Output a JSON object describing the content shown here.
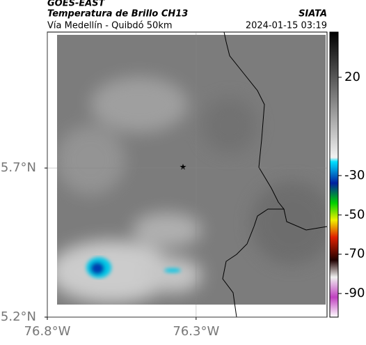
{
  "header": {
    "title": "GOES-EAST",
    "subtitle": "Temperatura de Brillo CH13",
    "route": "Vía Medellín - Quibdó 50km",
    "source": "SIATA",
    "timestamp": "2024-01-15 03:19"
  },
  "map": {
    "xlim": [
      -76.8,
      -75.86
    ],
    "ylim": [
      5.2,
      6.156
    ],
    "xticks": [
      {
        "value": -76.8,
        "label": "76.8°W"
      },
      {
        "value": -76.3,
        "label": "76.3°W"
      }
    ],
    "yticks": [
      {
        "value": 5.2,
        "label": "5.2°N"
      },
      {
        "value": 5.7,
        "label": "5.7°N"
      }
    ]
  },
  "colorbar": {
    "lim": [
      -102,
      43
    ],
    "ticks": [
      20,
      -30,
      -50,
      -70,
      -90
    ]
  }
}
